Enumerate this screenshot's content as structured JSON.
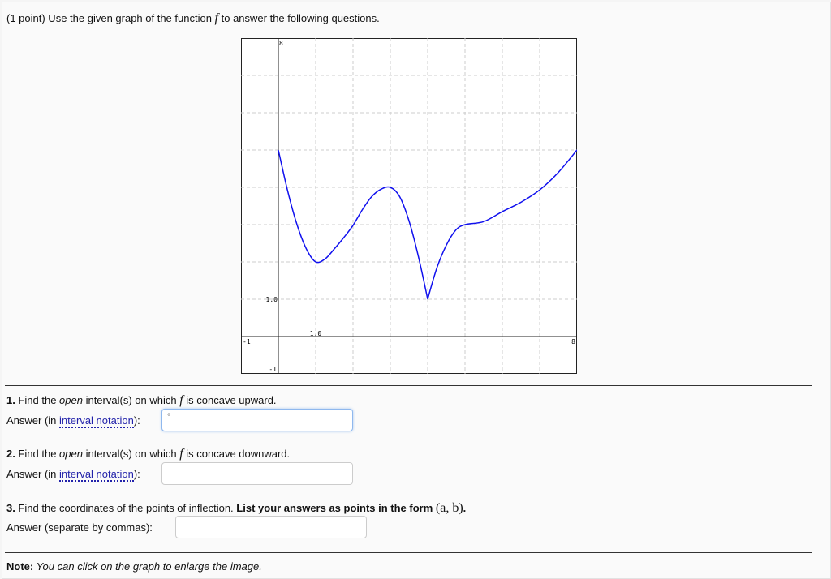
{
  "problem": {
    "header_prefix": "(1 point) Use the given graph of the function ",
    "func": "f",
    "header_suffix": " to answer the following questions."
  },
  "graph": {
    "xlim": [
      -1,
      8
    ],
    "ylim": [
      -1,
      8
    ],
    "grid": true,
    "curve_color": "#1010ee",
    "tick_labels": {
      "xmin": "-1",
      "xmax": "8",
      "ymin": "-1",
      "ymax": "8",
      "x1": "1.0",
      "y1": "1.0"
    },
    "curve_points": [
      [
        0,
        5
      ],
      [
        0.25,
        3.9
      ],
      [
        0.5,
        3.0
      ],
      [
        0.75,
        2.35
      ],
      [
        1,
        2
      ],
      [
        1.25,
        2.08
      ],
      [
        1.5,
        2.35
      ],
      [
        1.75,
        2.65
      ],
      [
        2,
        2.98
      ],
      [
        2.25,
        3.4
      ],
      [
        2.5,
        3.75
      ],
      [
        2.75,
        3.95
      ],
      [
        3,
        4
      ],
      [
        3.25,
        3.75
      ],
      [
        3.5,
        3.1
      ],
      [
        3.75,
        2.15
      ],
      [
        4,
        1
      ],
      [
        4.25,
        1.85
      ],
      [
        4.5,
        2.45
      ],
      [
        4.75,
        2.85
      ],
      [
        5,
        3
      ],
      [
        5.5,
        3.08
      ],
      [
        6,
        3.35
      ],
      [
        6.5,
        3.6
      ],
      [
        7,
        3.93
      ],
      [
        7.5,
        4.4
      ],
      [
        8,
        5
      ]
    ]
  },
  "q1": {
    "num": "1.",
    "pre": " Find the ",
    "em": "open",
    "post": " interval(s) on which ",
    "func": "f",
    "post2": " is concave upward.",
    "answer_pre": "Answer (in ",
    "link": "interval notation",
    "answer_post": "):",
    "value": "°"
  },
  "q2": {
    "num": "2.",
    "pre": " Find the ",
    "em": "open",
    "post": " interval(s) on which ",
    "func": "f",
    "post2": " is concave downward.",
    "answer_pre": "Answer (in ",
    "link": "interval notation",
    "answer_post": "):",
    "value": ""
  },
  "q3": {
    "num": "3.",
    "text": " Find the coordinates of the points of inflection. ",
    "bold": "List your answers as points in the form ",
    "form": "(a, b)",
    "dot": ".",
    "answer_label": "Answer (separate by commas):",
    "value": ""
  },
  "note": {
    "bold": "Note:",
    "text": " You can click on the graph to enlarge the image."
  }
}
